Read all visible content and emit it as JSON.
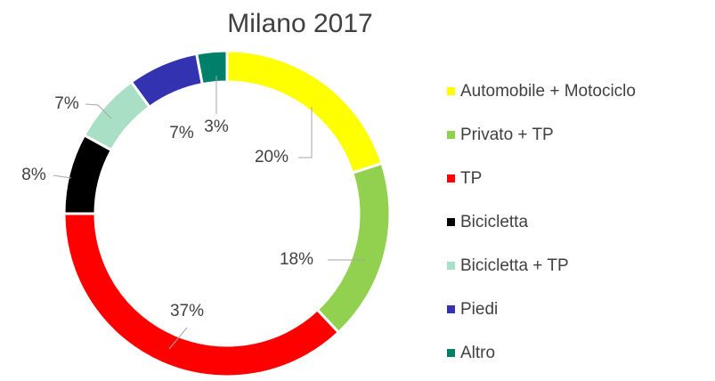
{
  "chart_data": {
    "type": "pie",
    "title": "Milano 2017",
    "categories": [
      "Automobile + Motociclo",
      "Privato + TP",
      "TP",
      "Bicicletta",
      "Bicicletta + TP",
      "Piedi",
      "Altro"
    ],
    "values": [
      20,
      18,
      37,
      8,
      7,
      7,
      3
    ],
    "value_labels": [
      "20%",
      "18%",
      "37%",
      "8%",
      "7%",
      "7%",
      "3%"
    ],
    "colors": [
      "#ffff00",
      "#92d050",
      "#ff0000",
      "#000000",
      "#a9dfc5",
      "#3333b2",
      "#00806a"
    ],
    "legend": "right"
  }
}
